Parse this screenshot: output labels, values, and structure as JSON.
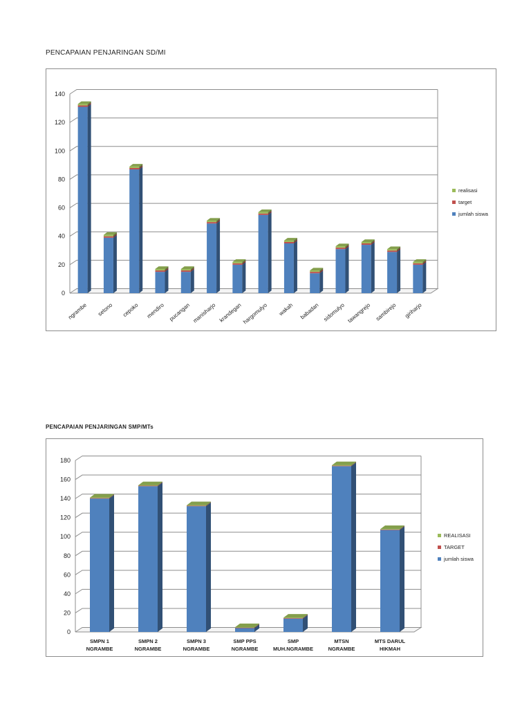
{
  "charts": {
    "sdmi": {
      "title": "PENCAPAIAN PENJARINGAN SD/MI"
    },
    "smp": {
      "title": "PENCAPAIAN PENJARINGAN SMP/MTs"
    }
  },
  "chart_data": [
    {
      "type": "bar",
      "title": "PENCAPAIAN PENJARINGAN SD/MI",
      "xlabel": "",
      "ylabel": "",
      "ylim": [
        0,
        140
      ],
      "yticks": [
        0,
        20,
        40,
        60,
        80,
        100,
        120,
        140
      ],
      "grid": true,
      "stacked": true,
      "three_d": true,
      "legend_position": "right",
      "categories": [
        "ngrambe",
        "setono",
        "cepoko",
        "mendiro",
        "pucangan",
        "manisharjo",
        "krandegan",
        "hargomulyo",
        "wakah",
        "babadan",
        "sidomulyo",
        "tawangrejo",
        "sambirejo",
        "giriharjo"
      ],
      "series": [
        {
          "name": "jumlah siswa",
          "color": "#4f81bd",
          "values": [
            131,
            39,
            87,
            15,
            15,
            49,
            20,
            55,
            35,
            14,
            31,
            34,
            29,
            20
          ]
        },
        {
          "name": "target",
          "color": "#c0504d",
          "values": [
            1,
            1,
            1,
            1,
            1,
            1,
            1,
            1,
            1,
            1,
            1,
            1,
            1,
            1
          ]
        },
        {
          "name": "realisasi",
          "color": "#9bbb59",
          "values": [
            1,
            1,
            1,
            1,
            1,
            1,
            1,
            1,
            1,
            1,
            1,
            1,
            1,
            1
          ]
        }
      ]
    },
    {
      "type": "bar",
      "title": "PENCAPAIAN PENJARINGAN SMP/MTs",
      "xlabel": "",
      "ylabel": "",
      "ylim": [
        0,
        180
      ],
      "yticks": [
        0,
        20,
        40,
        60,
        80,
        100,
        120,
        140,
        160,
        180
      ],
      "grid": true,
      "stacked": true,
      "three_d": true,
      "legend_position": "right",
      "categories": [
        [
          "SMPN 1",
          "NGRAMBE"
        ],
        [
          "SMPN 2",
          "NGRAMBE"
        ],
        [
          "SMPN 3",
          "NGRAMBE"
        ],
        [
          "SMP PPS",
          "NGRAMBE"
        ],
        [
          "SMP",
          "MUH.NGRAMBE"
        ],
        [
          "MTSN",
          "NGRAMBE"
        ],
        [
          "MTS DARUL",
          "HIKMAH"
        ]
      ],
      "series": [
        {
          "name": "jumlah siswa",
          "color": "#4f81bd",
          "values": [
            140,
            153,
            132,
            4,
            14,
            174,
            107
          ]
        },
        {
          "name": "TARGET",
          "color": "#c0504d",
          "values": [
            0.5,
            0.5,
            0.5,
            0.5,
            0.5,
            0.5,
            0.5
          ]
        },
        {
          "name": "REALISASI",
          "color": "#9bbb59",
          "values": [
            0.5,
            0.5,
            0.5,
            0.5,
            0.5,
            0.5,
            0.5
          ]
        }
      ]
    }
  ]
}
